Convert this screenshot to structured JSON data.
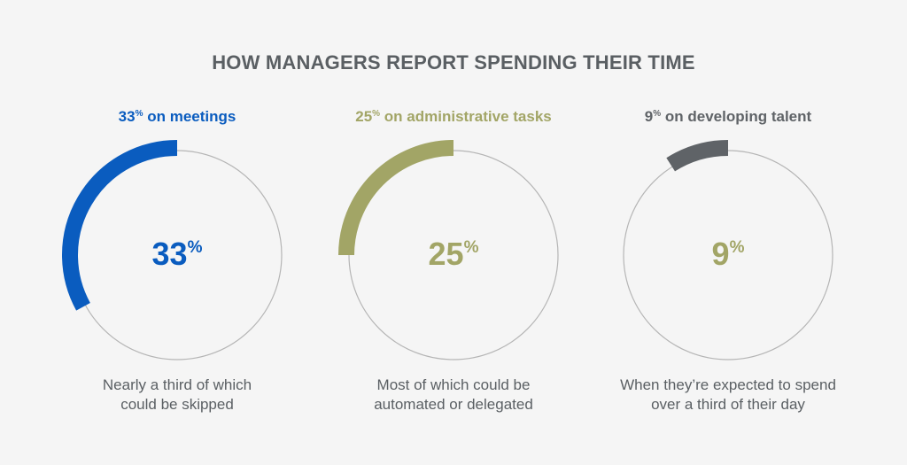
{
  "title": "HOW MANAGERS REPORT SPENDING THEIR TIME",
  "chart_data": {
    "type": "pie",
    "title": "HOW MANAGERS REPORT SPENDING THEIR TIME",
    "items": [
      {
        "value": 33,
        "heading_num": "33",
        "heading_sup": "%",
        "heading_text": " on meetings",
        "center_num": "33",
        "center_sup": "%",
        "caption_1": "Nearly a third of which",
        "caption_2": "could be skipped",
        "color": "#0a5cbf",
        "heading_color": "#0a5cbf",
        "center_color": "#0a5cbf"
      },
      {
        "value": 25,
        "heading_num": "25",
        "heading_sup": "%",
        "heading_text": " on administrative tasks",
        "center_num": "25",
        "center_sup": "%",
        "caption_1": "Most of which could be",
        "caption_2": "automated or delegated",
        "color": "#a2a566",
        "heading_color": "#a2a566",
        "center_color": "#a2a566"
      },
      {
        "value": 9,
        "heading_num": "9",
        "heading_sup": "%",
        "heading_text": " on developing talent",
        "center_num": "9",
        "center_sup": "%",
        "caption_1": "When they’re expected to spend",
        "caption_2": "over a third of their day",
        "color": "#5f6367",
        "heading_color": "#5f6367",
        "center_color": "#a2a566"
      }
    ],
    "track_color": "#b5b5b5",
    "background": "#f5f5f5"
  }
}
